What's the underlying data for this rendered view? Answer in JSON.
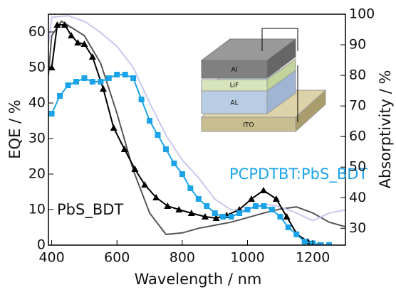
{
  "chart_data": {
    "type": "line",
    "xlabel": "Wavelength / nm",
    "ylabel": "EQE / %",
    "y2label": "Absorptivity / %",
    "xlim": [
      390,
      1300
    ],
    "xticks": [
      400,
      600,
      800,
      1000,
      1200
    ],
    "ylim": [
      0,
      65
    ],
    "yticks": [
      0,
      10,
      20,
      30,
      40,
      50,
      60
    ],
    "y2lim": [
      24.5,
      100
    ],
    "y2ticks": [
      30,
      40,
      50,
      60,
      70,
      80,
      90,
      100
    ],
    "annotations": [
      "PbS_BDT",
      "PCPDTBT:PbS_BDT"
    ],
    "series": [
      {
        "color": "#555555",
        "axis": "y2",
        "marker": "none",
        "x": [
          390,
          400,
          430,
          470,
          500,
          550,
          600,
          650,
          700,
          750,
          800,
          850,
          900,
          950,
          1000,
          1050,
          1100,
          1150,
          1200,
          1250,
          1300
        ],
        "values": [
          80,
          93,
          97.7,
          95,
          93,
          84,
          67.6,
          49,
          35,
          28,
          28.5,
          30,
          31,
          32,
          33.5,
          35,
          36.3,
          37,
          35,
          32,
          30.5
        ]
      },
      {
        "color": "#c8c8f0",
        "axis": "y2",
        "marker": "none",
        "x": [
          390,
          400,
          450,
          500,
          550,
          600,
          650,
          700,
          750,
          800,
          850,
          900,
          950,
          1000,
          1050,
          1100,
          1150,
          1200,
          1250,
          1300
        ],
        "values": [
          90,
          99,
          99.5,
          97.7,
          94,
          89.5,
          82.6,
          71,
          60.5,
          52.3,
          46.5,
          39.5,
          36,
          36,
          38,
          37,
          35,
          32.5,
          35,
          36
        ]
      },
      {
        "color": "#000000",
        "axis": "y",
        "marker": "triangle",
        "x": [
          400,
          417,
          440,
          460,
          480,
          500,
          525,
          558,
          590,
          623,
          655,
          685,
          720,
          755,
          790,
          828,
          870,
          904,
          936,
          975,
          1012,
          1049,
          1088,
          1120,
          1152,
          1185,
          1217,
          1250
        ],
        "values": [
          50,
          62,
          62,
          59,
          57,
          56.6,
          53,
          44,
          33,
          27,
          21.4,
          17,
          13.4,
          11,
          10,
          9,
          8,
          7.6,
          8.4,
          10,
          13,
          15.4,
          13,
          8,
          3,
          1,
          0,
          0
        ]
      },
      {
        "color": "#1aa3e8",
        "axis": "y",
        "marker": "square",
        "x": [
          400,
          425,
          450,
          475,
          500,
          525,
          550,
          575,
          600,
          625,
          650,
          675,
          700,
          725,
          750,
          775,
          800,
          825,
          850,
          875,
          900,
          925,
          950,
          975,
          1000,
          1025,
          1050,
          1075,
          1100,
          1125,
          1150,
          1175,
          1200,
          1225,
          1250
        ],
        "values": [
          37,
          42,
          45,
          46,
          47,
          46,
          46,
          47,
          48,
          48,
          47,
          41,
          35,
          31,
          27,
          23,
          20,
          16,
          13,
          11,
          9,
          8,
          8,
          9,
          10,
          11,
          11,
          10,
          8,
          5,
          3,
          1,
          0.5,
          0,
          0
        ]
      }
    ]
  },
  "inset": {
    "layers": [
      "Al",
      "LiF",
      "AL",
      "ITO"
    ]
  }
}
